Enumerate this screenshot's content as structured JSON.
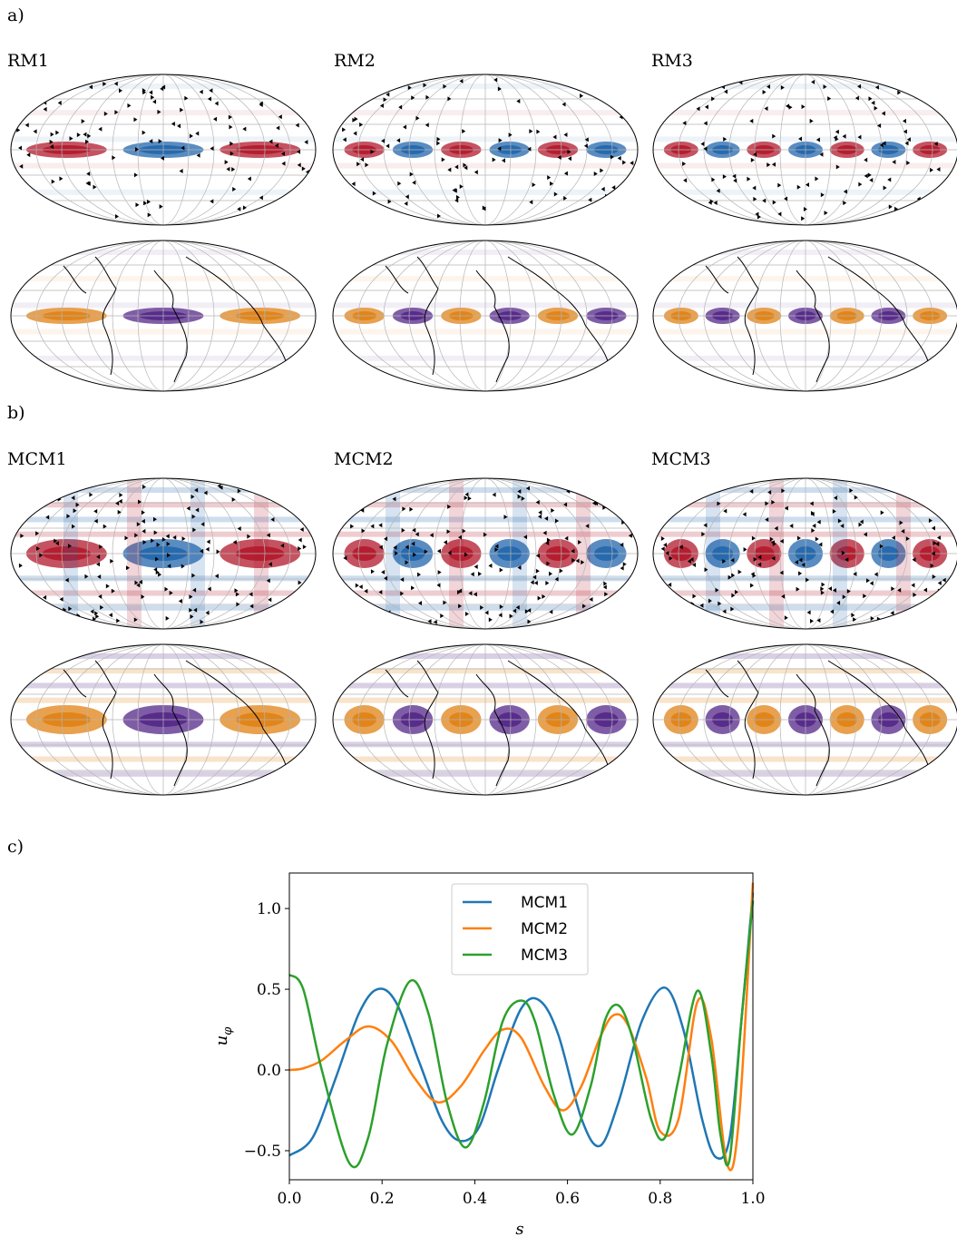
{
  "panels": {
    "a": "a)",
    "b": "b)",
    "c": "c)"
  },
  "maps": {
    "rm_titles": [
      "RM1",
      "RM2",
      "RM3"
    ],
    "mcm_titles": [
      "MCM1",
      "MCM2",
      "MCM3"
    ]
  },
  "colors": {
    "series_1": "#1f77b4",
    "series_2": "#ff7f0e",
    "series_3": "#2ca02c",
    "flow_red": "#b2182b",
    "flow_blue": "#2166ac",
    "field_orange": "#e08214",
    "field_purple": "#542788"
  },
  "chart_data": {
    "type": "line",
    "xlabel": "s",
    "ylabel": "u",
    "ylabel_sub": "φ",
    "xlim": [
      0.0,
      1.0
    ],
    "ylim": [
      -0.68,
      1.22
    ],
    "xticks": [
      "0.0",
      "0.2",
      "0.4",
      "0.6",
      "0.8",
      "1.0"
    ],
    "yticks": [
      "−0.5",
      "0.0",
      "0.5",
      "1.0"
    ],
    "legend_position": "top-center",
    "grid": false,
    "series": [
      {
        "name": "MCM1",
        "x": [
          0.0,
          0.05,
          0.1,
          0.15,
          0.19,
          0.23,
          0.28,
          0.33,
          0.37,
          0.41,
          0.45,
          0.5,
          0.54,
          0.58,
          0.63,
          0.67,
          0.71,
          0.76,
          0.81,
          0.85,
          0.89,
          0.92,
          0.95,
          0.975,
          1.0
        ],
        "y": [
          -0.53,
          -0.42,
          -0.05,
          0.35,
          0.5,
          0.42,
          0.05,
          -0.32,
          -0.44,
          -0.35,
          0.0,
          0.38,
          0.43,
          0.22,
          -0.3,
          -0.47,
          -0.2,
          0.3,
          0.51,
          0.25,
          -0.3,
          -0.54,
          -0.42,
          0.3,
          1.1
        ]
      },
      {
        "name": "MCM2",
        "x": [
          0.0,
          0.03,
          0.07,
          0.12,
          0.17,
          0.22,
          0.27,
          0.32,
          0.37,
          0.42,
          0.46,
          0.5,
          0.55,
          0.59,
          0.63,
          0.67,
          0.7,
          0.73,
          0.77,
          0.8,
          0.84,
          0.88,
          0.91,
          0.945,
          0.97,
          1.0
        ],
        "y": [
          0.0,
          0.01,
          0.06,
          0.18,
          0.27,
          0.18,
          -0.05,
          -0.2,
          -0.1,
          0.12,
          0.25,
          0.2,
          -0.1,
          -0.25,
          -0.1,
          0.2,
          0.34,
          0.28,
          -0.05,
          -0.38,
          -0.3,
          0.42,
          0.2,
          -0.59,
          -0.3,
          1.16
        ]
      },
      {
        "name": "MCM3",
        "x": [
          0.0,
          0.03,
          0.07,
          0.13,
          0.17,
          0.21,
          0.26,
          0.3,
          0.34,
          0.38,
          0.42,
          0.46,
          0.5,
          0.53,
          0.57,
          0.61,
          0.65,
          0.68,
          0.71,
          0.74,
          0.78,
          0.81,
          0.84,
          0.88,
          0.91,
          0.93,
          0.95,
          0.975,
          1.0
        ],
        "y": [
          0.59,
          0.5,
          0.0,
          -0.58,
          -0.42,
          0.15,
          0.55,
          0.35,
          -0.2,
          -0.48,
          -0.2,
          0.3,
          0.43,
          0.3,
          -0.15,
          -0.4,
          -0.1,
          0.3,
          0.4,
          0.2,
          -0.3,
          -0.42,
          -0.05,
          0.49,
          0.1,
          -0.4,
          -0.55,
          0.3,
          1.05
        ]
      }
    ]
  }
}
